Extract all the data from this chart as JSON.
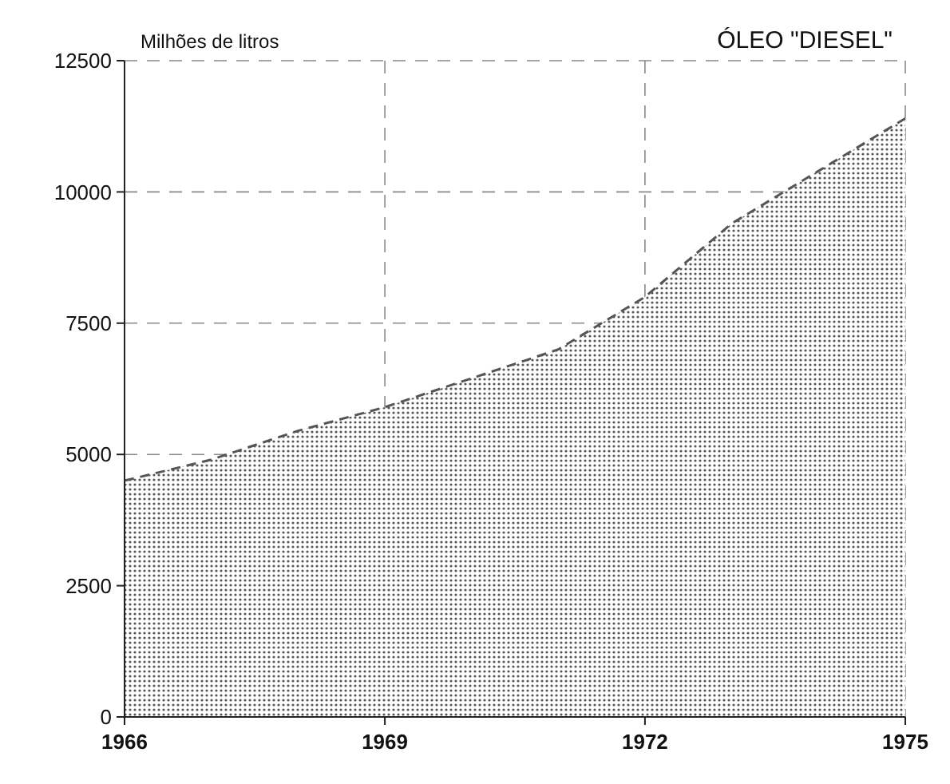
{
  "chart_data": {
    "type": "area",
    "title": "ÓLEO \"DIESEL\"",
    "ylabel": "Milhões de litros",
    "x": [
      "1966",
      "1967",
      "1968",
      "1969",
      "1970",
      "1971",
      "1972",
      "1973",
      "1974",
      "1975"
    ],
    "series": [
      {
        "color": "#555555",
        "values": [
          4500,
          4900,
          5450,
          5900,
          6450,
          7000,
          8000,
          9400,
          10400,
          11400
        ]
      }
    ],
    "xlim": [
      "1966",
      "1975"
    ],
    "xticks": [
      {
        "value": "1966",
        "label": "1966"
      },
      {
        "value": "1969",
        "label": "1969"
      },
      {
        "value": "1972",
        "label": "1972"
      },
      {
        "value": "1975",
        "label": "1975"
      }
    ],
    "ylim": [
      0,
      12500
    ],
    "yticks": [
      0,
      2500,
      5000,
      7500,
      10000,
      12500
    ],
    "grid": true,
    "line_style": "dashed"
  }
}
